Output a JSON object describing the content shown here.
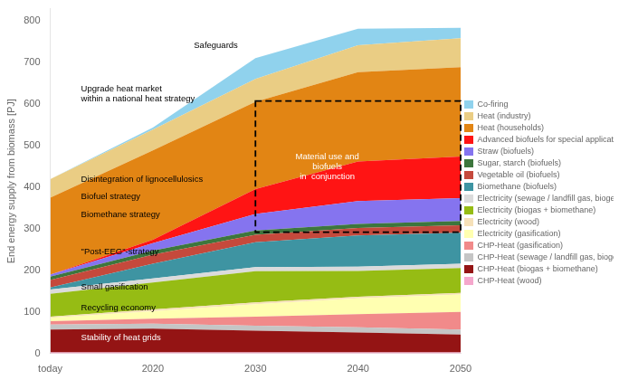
{
  "chart_data": {
    "type": "area",
    "stacked": true,
    "x": [
      2010,
      2020,
      2030,
      2040,
      2050
    ],
    "xlim": [
      2010,
      2050
    ],
    "xticks": [
      {
        "value": 2010,
        "label": "today"
      },
      2020,
      2030,
      2040,
      2050
    ],
    "ylabel": "End energy supply from biomass [PJ]",
    "ylim": [
      0,
      830
    ],
    "yticks": [
      0,
      100,
      200,
      300,
      400,
      500,
      600,
      700,
      800
    ],
    "grid": false,
    "legend": "right",
    "series": [
      {
        "name": "CHP-Heat (wood)",
        "color": "#f4a0c8",
        "values": [
          3,
          3,
          3,
          3,
          3
        ]
      },
      {
        "name": "CHP-Heat (biogas + biomethane)",
        "color": "#8b0000",
        "values": [
          55,
          57,
          52,
          48,
          43
        ]
      },
      {
        "name": "CHP-Heat (sewage / landfill gas, biogenic fraction of waste)",
        "color": "#c0c0c0",
        "values": [
          12,
          12,
          12,
          12,
          12
        ]
      },
      {
        "name": "CHP-Heat (gasification)",
        "color": "#f08080",
        "values": [
          8,
          12,
          22,
          32,
          42
        ]
      },
      {
        "name": "Electricity (gasification)",
        "color": "#ffffaa",
        "values": [
          8,
          18,
          30,
          38,
          42
        ]
      },
      {
        "name": "Electricity (wood)",
        "color": "#f5deb3",
        "values": [
          3,
          4,
          4,
          4,
          4
        ]
      },
      {
        "name": "Electricity (biogas + biomethane)",
        "color": "#8db600",
        "values": [
          55,
          65,
          75,
          62,
          60
        ]
      },
      {
        "name": "Electricity (sewage / landfill gas, biogenic fraction of waste)",
        "color": "#d8d8d8",
        "values": [
          10,
          10,
          10,
          10,
          10
        ]
      },
      {
        "name": "Biomethane (biofuels)",
        "color": "#2e8b9a",
        "values": [
          5,
          35,
          60,
          75,
          75
        ]
      },
      {
        "name": "Vegetable oil (biofuels)",
        "color": "#c0392b",
        "values": [
          18,
          22,
          18,
          18,
          18
        ]
      },
      {
        "name": "Sugar, starch (biofuels)",
        "color": "#2d6a2d",
        "values": [
          8,
          10,
          10,
          10,
          10
        ]
      },
      {
        "name": "Straw (biofuels)",
        "color": "#7b68ee",
        "values": [
          5,
          18,
          40,
          55,
          55
        ]
      },
      {
        "name": "Advanced biofuels for special application",
        "color": "#ff0000",
        "values": [
          0,
          8,
          60,
          95,
          100
        ]
      },
      {
        "name": "Heat (households)",
        "color": "#e07b00",
        "values": [
          185,
          215,
          210,
          215,
          215
        ]
      },
      {
        "name": "Heat (industry)",
        "color": "#e8c97a",
        "values": [
          45,
          50,
          55,
          65,
          70
        ]
      },
      {
        "name": "Co-firing",
        "color": "#87ceeb",
        "values": [
          0,
          5,
          50,
          40,
          25
        ]
      }
    ],
    "annotations": [
      {
        "text": "Safeguards",
        "x": 2024,
        "y": 742,
        "color": "black",
        "align": "left"
      },
      {
        "text": "Upgrade heat market\nwithin a national heat strategy",
        "x": 2013,
        "y": 625,
        "color": "black",
        "align": "left"
      },
      {
        "text": "Disintegration of lignocellulosics",
        "x": 2013,
        "y": 418,
        "color": "black",
        "align": "left"
      },
      {
        "text": "Biofuel strategy",
        "x": 2013,
        "y": 378,
        "color": "black",
        "align": "left"
      },
      {
        "text": "Biomethane strategy",
        "x": 2013,
        "y": 335,
        "color": "black",
        "align": "left"
      },
      {
        "text": "\"Post-EEG\"-strategy",
        "x": 2013,
        "y": 245,
        "color": "black",
        "align": "left"
      },
      {
        "text": "Small gasification",
        "x": 2013,
        "y": 160,
        "color": "black",
        "align": "left"
      },
      {
        "text": "Recycling economy",
        "x": 2013,
        "y": 110,
        "color": "black",
        "align": "left"
      },
      {
        "text": "Stability of heat grids",
        "x": 2013,
        "y": 38,
        "color": "white",
        "align": "left"
      },
      {
        "text": "Material use and\nbiofuels\nin  conjunction",
        "x": 2037,
        "y": 450,
        "color": "white",
        "align": "center"
      }
    ],
    "boxes": [
      {
        "x0": 2030,
        "y0": 292,
        "x1": 2050,
        "y1": 608,
        "line_style": "dashed"
      }
    ]
  }
}
